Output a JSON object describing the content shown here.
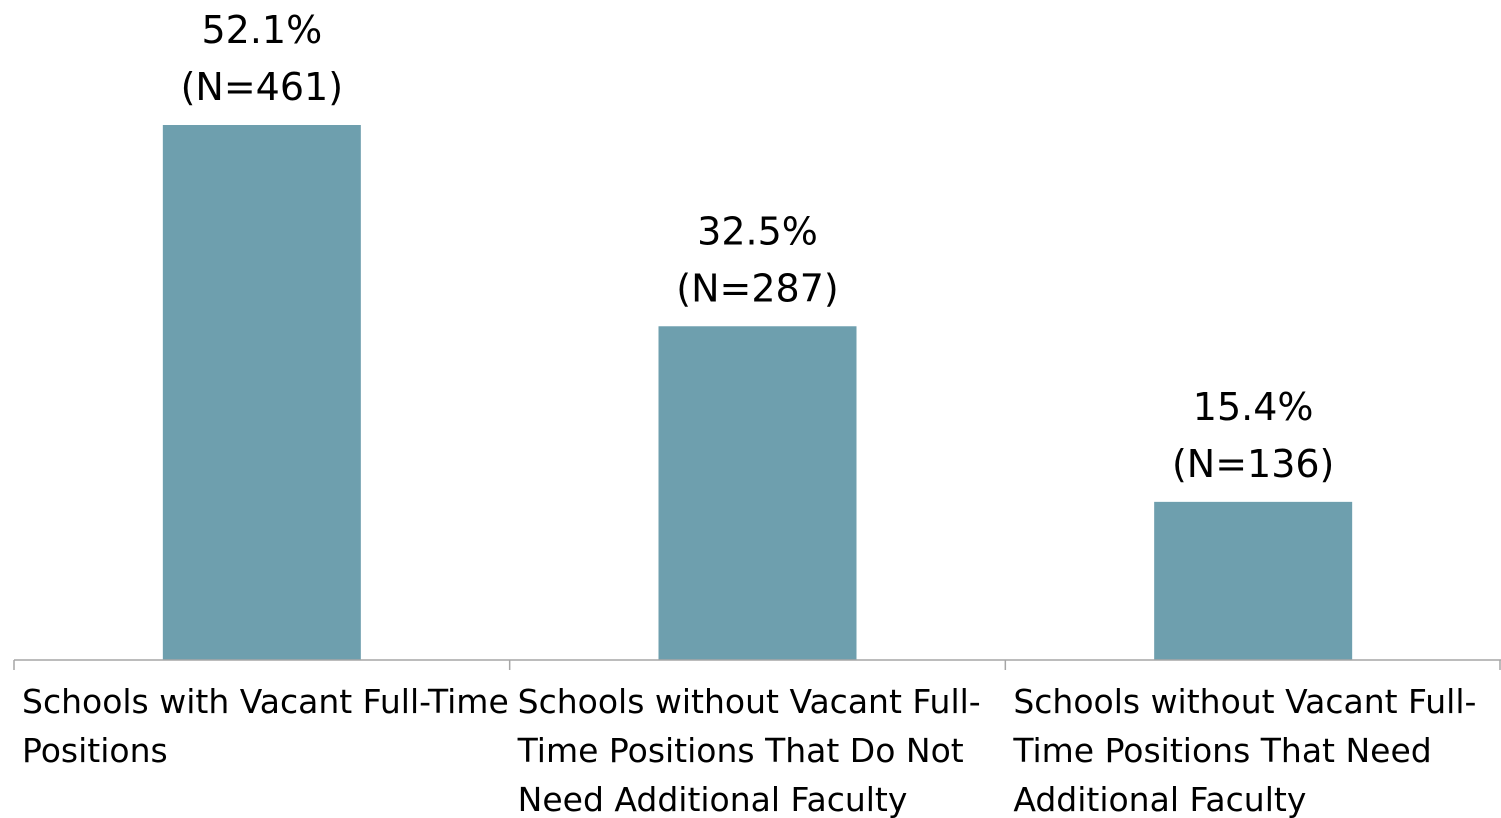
{
  "chart_data": {
    "type": "bar",
    "categories": [
      [
        "Schools with Vacant Full-Time",
        "Positions"
      ],
      [
        "Schools without Vacant Full-",
        "Time Positions That Do Not",
        "Need Additional Faculty"
      ],
      [
        "Schools without Vacant Full-",
        "Time Positions That Need",
        "Additional Faculty"
      ]
    ],
    "values": [
      52.1,
      32.5,
      15.4
    ],
    "counts": [
      461,
      287,
      136
    ],
    "data_labels": [
      [
        "52.1%",
        "(N=461)"
      ],
      [
        "32.5%",
        "(N=287)"
      ],
      [
        "15.4%",
        "(N=136)"
      ]
    ],
    "title": "",
    "xlabel": "",
    "ylabel": "",
    "ylim": [
      0,
      55
    ],
    "bar_color": "#6e9fae",
    "grid": false,
    "legend": "none"
  }
}
